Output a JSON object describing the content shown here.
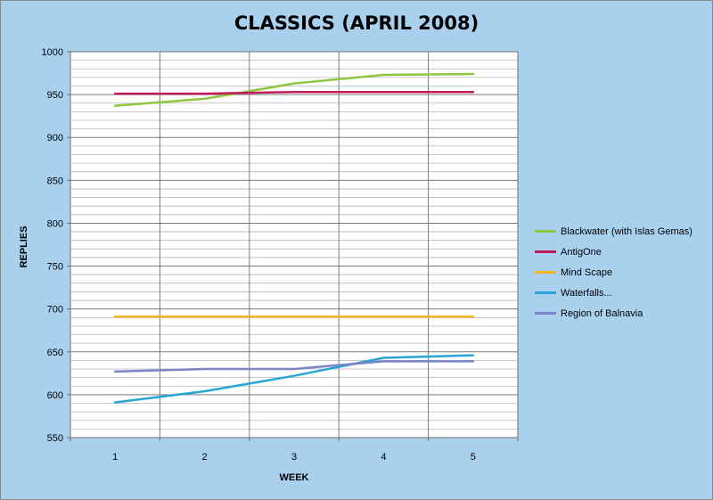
{
  "chart_data": {
    "type": "line",
    "title": "CLASSICS (APRIL 2008)",
    "xlabel": "WEEK",
    "ylabel": "REPLIES",
    "categories": [
      "1",
      "2",
      "3",
      "4",
      "5"
    ],
    "ylim": [
      550,
      1000
    ],
    "yticks": [
      "550",
      "600",
      "650",
      "700",
      "750",
      "800",
      "850",
      "900",
      "950",
      "1000"
    ],
    "grid": true,
    "legend_position": "right",
    "series": [
      {
        "name": "Blackwater (with Islas  Gemas)",
        "color": "#8dc740",
        "values": [
          937,
          945,
          963,
          973,
          974
        ]
      },
      {
        "name": "AntigOne",
        "color": "#c01a5a",
        "values": [
          951,
          951,
          953,
          953,
          953
        ]
      },
      {
        "name": "Mind Scape",
        "color": "#f4b323",
        "values": [
          691,
          691,
          691,
          691,
          691
        ]
      },
      {
        "name": "Waterfalls...",
        "color": "#26a5d6",
        "values": [
          591,
          604,
          622,
          643,
          646
        ]
      },
      {
        "name": "Region of Balnavia",
        "color": "#7b84c6",
        "values": [
          627,
          630,
          630,
          639,
          639
        ]
      }
    ]
  }
}
